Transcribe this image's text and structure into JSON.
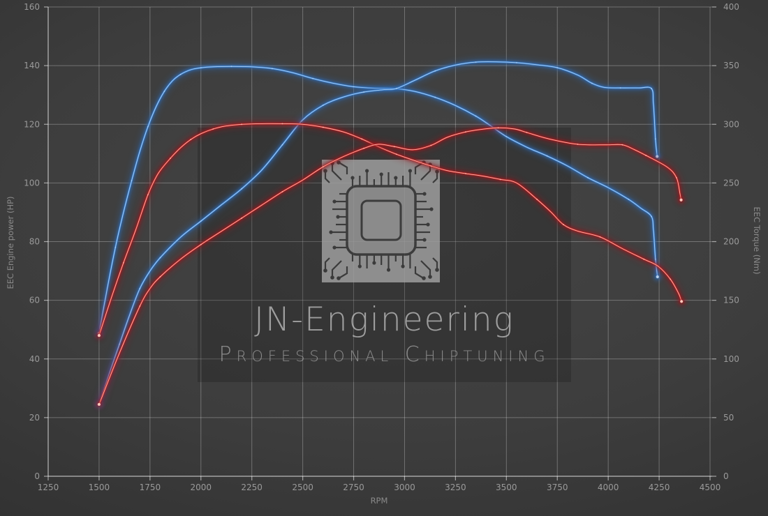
{
  "watermark": {
    "line1": "JN-Engineering",
    "line2": "Professional Chiptuning"
  },
  "background": {
    "center_color": "#454545",
    "edge_color": "#292929",
    "panel_overlay": "rgba(12,12,12,0.22)",
    "grid_color": "rgba(255,255,255,0.28)",
    "axis_color": "rgba(255,255,255,0.55)",
    "tick_label_color": "#9a9a9a",
    "axis_title_color": "#8a8a8a"
  },
  "chart_data": {
    "type": "line",
    "title": "",
    "xlabel": "RPM",
    "x_range": [
      1250,
      4500
    ],
    "x_ticks": [
      1250,
      1500,
      1750,
      2000,
      2250,
      2500,
      2750,
      3000,
      3250,
      3500,
      3750,
      4000,
      4250,
      4500
    ],
    "left_axis": {
      "label": "EEC Engine power (HP)",
      "range": [
        0,
        160
      ],
      "ticks": [
        0,
        20,
        40,
        60,
        80,
        100,
        120,
        140,
        160
      ]
    },
    "right_axis": {
      "label": "EEC Torque (Nm)",
      "range": [
        0,
        400
      ],
      "ticks": [
        0,
        50,
        100,
        150,
        200,
        250,
        300,
        350,
        400
      ]
    },
    "grid": true,
    "legend": "none",
    "series": [
      {
        "id": "torque-blue",
        "kind": "torque",
        "axis": "right",
        "unit": "Nm",
        "color_glow": "#2f6bb4",
        "color_mid": "#3f86d6",
        "color_core": "#bcd8f5",
        "peak": 349,
        "points": [
          [
            1500,
            122
          ],
          [
            1540,
            160
          ],
          [
            1580,
            195
          ],
          [
            1620,
            225
          ],
          [
            1660,
            252
          ],
          [
            1700,
            277
          ],
          [
            1740,
            298
          ],
          [
            1780,
            315
          ],
          [
            1820,
            328
          ],
          [
            1860,
            337
          ],
          [
            1900,
            342.5
          ],
          [
            1950,
            346.5
          ],
          [
            2000,
            348.2
          ],
          [
            2060,
            349
          ],
          [
            2150,
            349.3
          ],
          [
            2250,
            349
          ],
          [
            2350,
            347.5
          ],
          [
            2450,
            344
          ],
          [
            2550,
            339
          ],
          [
            2650,
            335
          ],
          [
            2750,
            332
          ],
          [
            2850,
            330.8
          ],
          [
            2960,
            330.3
          ],
          [
            3050,
            328
          ],
          [
            3150,
            323
          ],
          [
            3250,
            316
          ],
          [
            3350,
            307
          ],
          [
            3420,
            299
          ],
          [
            3500,
            289.5
          ],
          [
            3600,
            280.5
          ],
          [
            3700,
            273
          ],
          [
            3800,
            264.5
          ],
          [
            3900,
            254.5
          ],
          [
            4000,
            246
          ],
          [
            4100,
            236
          ],
          [
            4160,
            228.5
          ],
          [
            4212,
            221.5
          ],
          [
            4222,
            210
          ],
          [
            4232,
            185
          ],
          [
            4242,
            170
          ]
        ]
      },
      {
        "id": "power-blue",
        "kind": "power",
        "axis": "left",
        "unit": "HP",
        "color_glow": "#2f6bb4",
        "color_mid": "#3f86d6",
        "color_core": "#bcd8f5",
        "peak": 141.3,
        "points": [
          [
            1500,
            24.5
          ],
          [
            1550,
            35
          ],
          [
            1600,
            45
          ],
          [
            1650,
            55
          ],
          [
            1700,
            64
          ],
          [
            1750,
            70
          ],
          [
            1800,
            74.5
          ],
          [
            1900,
            81.5
          ],
          [
            2000,
            87
          ],
          [
            2100,
            92.5
          ],
          [
            2200,
            98
          ],
          [
            2300,
            104.5
          ],
          [
            2400,
            113
          ],
          [
            2500,
            121.5
          ],
          [
            2600,
            126.5
          ],
          [
            2700,
            129.3
          ],
          [
            2800,
            131
          ],
          [
            2900,
            131.8
          ],
          [
            2960,
            132.2
          ],
          [
            3050,
            135
          ],
          [
            3150,
            138.2
          ],
          [
            3250,
            140.2
          ],
          [
            3350,
            141.2
          ],
          [
            3450,
            141.3
          ],
          [
            3550,
            141
          ],
          [
            3650,
            140.3
          ],
          [
            3750,
            139.3
          ],
          [
            3850,
            136.8
          ],
          [
            3920,
            134
          ],
          [
            3980,
            132.6
          ],
          [
            4060,
            132.4
          ],
          [
            4150,
            132.4
          ],
          [
            4212,
            132.2
          ],
          [
            4222,
            127
          ],
          [
            4232,
            115
          ],
          [
            4240,
            109
          ]
        ]
      },
      {
        "id": "torque-red",
        "kind": "torque",
        "axis": "right",
        "unit": "Nm",
        "color_glow": "#99151b",
        "color_mid": "#c62828",
        "color_core": "#ffcfc2",
        "peak": 300.5,
        "points": [
          [
            1500,
            120
          ],
          [
            1560,
            152
          ],
          [
            1620,
            182
          ],
          [
            1680,
            210
          ],
          [
            1740,
            240
          ],
          [
            1790,
            258
          ],
          [
            1850,
            271
          ],
          [
            1900,
            280
          ],
          [
            1950,
            287
          ],
          [
            2000,
            292
          ],
          [
            2060,
            296
          ],
          [
            2120,
            298.5
          ],
          [
            2200,
            300
          ],
          [
            2300,
            300.5
          ],
          [
            2400,
            300.5
          ],
          [
            2500,
            300
          ],
          [
            2600,
            297.5
          ],
          [
            2700,
            293.5
          ],
          [
            2790,
            287.5
          ],
          [
            2870,
            281
          ],
          [
            2960,
            274.5
          ],
          [
            3050,
            269
          ],
          [
            3130,
            264.5
          ],
          [
            3210,
            260.5
          ],
          [
            3300,
            258
          ],
          [
            3380,
            256
          ],
          [
            3470,
            253
          ],
          [
            3550,
            250
          ],
          [
            3650,
            236
          ],
          [
            3720,
            225
          ],
          [
            3780,
            214.5
          ],
          [
            3850,
            209
          ],
          [
            3960,
            204
          ],
          [
            4070,
            194
          ],
          [
            4175,
            185
          ],
          [
            4245,
            179
          ],
          [
            4305,
            168
          ],
          [
            4345,
            156
          ],
          [
            4360,
            149
          ]
        ]
      },
      {
        "id": "power-red",
        "kind": "power",
        "axis": "left",
        "unit": "HP",
        "color_glow": "#99151b",
        "color_mid": "#c62828",
        "color_core": "#ffcfc2",
        "peak": 118.8,
        "points": [
          [
            1500,
            24.5
          ],
          [
            1600,
            42
          ],
          [
            1700,
            58
          ],
          [
            1750,
            64
          ],
          [
            1800,
            68
          ],
          [
            1900,
            74
          ],
          [
            2000,
            79
          ],
          [
            2100,
            83.5
          ],
          [
            2200,
            88
          ],
          [
            2300,
            92.5
          ],
          [
            2400,
            97
          ],
          [
            2500,
            101
          ],
          [
            2600,
            105.5
          ],
          [
            2700,
            109
          ],
          [
            2800,
            111.8
          ],
          [
            2870,
            113.2
          ],
          [
            2950,
            112.4
          ],
          [
            3040,
            111.3
          ],
          [
            3130,
            112.8
          ],
          [
            3210,
            115.6
          ],
          [
            3300,
            117.4
          ],
          [
            3380,
            118.3
          ],
          [
            3460,
            118.8
          ],
          [
            3540,
            118.4
          ],
          [
            3600,
            117.2
          ],
          [
            3710,
            115
          ],
          [
            3850,
            113.2
          ],
          [
            3990,
            113
          ],
          [
            4070,
            113
          ],
          [
            4130,
            111.3
          ],
          [
            4185,
            109.4
          ],
          [
            4290,
            105.4
          ],
          [
            4335,
            101.8
          ],
          [
            4352,
            96.5
          ],
          [
            4358,
            94.2
          ]
        ]
      }
    ]
  }
}
